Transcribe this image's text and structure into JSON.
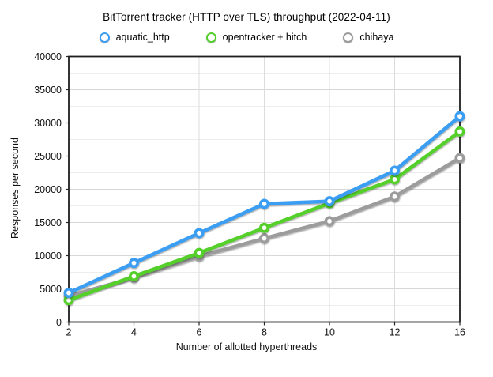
{
  "chart_data": {
    "type": "line",
    "title": "BitTorrent tracker (HTTP over TLS) throughput (2022-04-11)",
    "xlabel": "Number of allotted hyperthreads",
    "ylabel": "Responses per second",
    "x_categories": [
      "2",
      "4",
      "6",
      "8",
      "10",
      "12",
      "16"
    ],
    "ylim": [
      0,
      40000
    ],
    "y_major_ticks": [
      0,
      5000,
      10000,
      15000,
      20000,
      25000,
      30000,
      35000,
      40000
    ],
    "y_minor_step": 2500,
    "grid": true,
    "legend_position": "top-center",
    "series": [
      {
        "name": "aquatic_http",
        "color": "#3b9ef2",
        "values": [
          4400,
          8900,
          13400,
          17800,
          18200,
          22800,
          31000
        ]
      },
      {
        "name": "opentracker + hitch",
        "color": "#55cf2b",
        "values": [
          3300,
          6900,
          10400,
          14200,
          17900,
          21500,
          28700
        ]
      },
      {
        "name": "chihaya",
        "color": "#9c9c9c",
        "values": [
          3900,
          6700,
          9900,
          12600,
          15200,
          18900,
          24700
        ]
      }
    ]
  }
}
